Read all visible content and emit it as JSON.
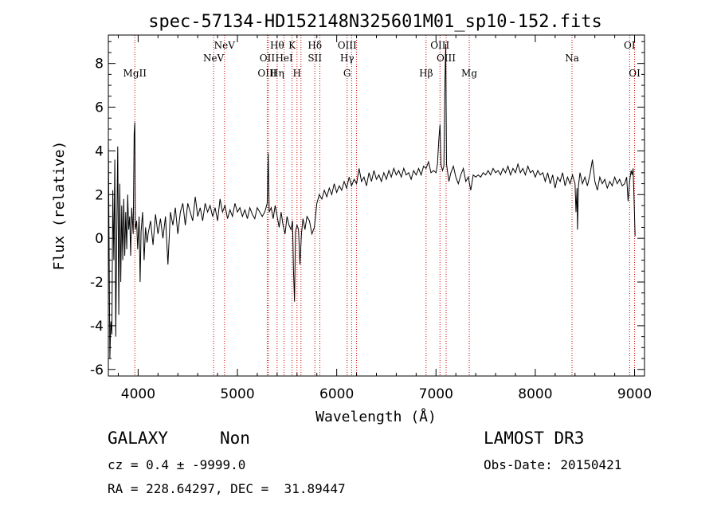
{
  "chart_data": {
    "type": "line",
    "title": "spec-57134-HD152148N325601M01_sp10-152.fits",
    "xlabel": "Wavelength (Å)",
    "ylabel": "Flux (relative)",
    "xlim": [
      3700,
      9100
    ],
    "ylim": [
      -6.3,
      9.3
    ],
    "x_ticks": [
      4000,
      5000,
      6000,
      7000,
      8000,
      9000
    ],
    "x_tick_labels": [
      "4000",
      "5000",
      "6000",
      "7000",
      "8000",
      "9000"
    ],
    "y_ticks": [
      -6,
      -4,
      -2,
      0,
      2,
      4,
      6,
      8
    ],
    "y_tick_labels": [
      "-6",
      "-4",
      "-2",
      "0",
      "2",
      "4",
      "6",
      "8"
    ],
    "grid": false,
    "line_color": "#000000",
    "marker_color": "#cc0000",
    "series": [
      {
        "name": "spectrum",
        "points": [
          [
            3700,
            4.6
          ],
          [
            3715,
            -5.5
          ],
          [
            3725,
            -3.8
          ],
          [
            3735,
            -4.4
          ],
          [
            3745,
            2.2
          ],
          [
            3755,
            -1.0
          ],
          [
            3765,
            3.6
          ],
          [
            3775,
            -4.5
          ],
          [
            3785,
            0.4
          ],
          [
            3795,
            4.2
          ],
          [
            3805,
            -3.5
          ],
          [
            3815,
            2.5
          ],
          [
            3825,
            -2.0
          ],
          [
            3835,
            1.5
          ],
          [
            3845,
            -1.0
          ],
          [
            3855,
            1.8
          ],
          [
            3865,
            -0.8
          ],
          [
            3875,
            1.2
          ],
          [
            3885,
            -0.5
          ],
          [
            3895,
            2.0
          ],
          [
            3905,
            0.4
          ],
          [
            3915,
            1.0
          ],
          [
            3925,
            -0.8
          ],
          [
            3935,
            1.4
          ],
          [
            3950,
            0.2
          ],
          [
            3960,
            4.8
          ],
          [
            3966,
            5.3
          ],
          [
            3972,
            0.4
          ],
          [
            3985,
            0.8
          ],
          [
            3995,
            -0.5
          ],
          [
            4010,
            1.0
          ],
          [
            4020,
            -2.0
          ],
          [
            4030,
            0.3
          ],
          [
            4045,
            1.2
          ],
          [
            4060,
            -1.0
          ],
          [
            4075,
            0.5
          ],
          [
            4090,
            -0.2
          ],
          [
            4100,
            0.2
          ],
          [
            4125,
            0.8
          ],
          [
            4150,
            -0.3
          ],
          [
            4175,
            1.1
          ],
          [
            4200,
            0.2
          ],
          [
            4225,
            0.9
          ],
          [
            4250,
            0.0
          ],
          [
            4275,
            1.0
          ],
          [
            4300,
            -1.2
          ],
          [
            4325,
            1.2
          ],
          [
            4350,
            0.6
          ],
          [
            4375,
            1.4
          ],
          [
            4400,
            0.2
          ],
          [
            4425,
            1.2
          ],
          [
            4450,
            1.6
          ],
          [
            4475,
            0.6
          ],
          [
            4500,
            1.6
          ],
          [
            4525,
            1.2
          ],
          [
            4550,
            0.8
          ],
          [
            4575,
            1.9
          ],
          [
            4600,
            1.0
          ],
          [
            4625,
            1.4
          ],
          [
            4650,
            0.8
          ],
          [
            4675,
            1.6
          ],
          [
            4700,
            1.2
          ],
          [
            4725,
            1.5
          ],
          [
            4750,
            1.0
          ],
          [
            4775,
            1.4
          ],
          [
            4800,
            0.8
          ],
          [
            4825,
            1.8
          ],
          [
            4850,
            1.2
          ],
          [
            4875,
            1.5
          ],
          [
            4900,
            0.9
          ],
          [
            4925,
            1.3
          ],
          [
            4950,
            1.0
          ],
          [
            4975,
            1.6
          ],
          [
            5000,
            1.2
          ],
          [
            5025,
            1.4
          ],
          [
            5050,
            1.0
          ],
          [
            5075,
            1.3
          ],
          [
            5100,
            0.9
          ],
          [
            5125,
            1.4
          ],
          [
            5150,
            1.1
          ],
          [
            5175,
            0.9
          ],
          [
            5200,
            1.4
          ],
          [
            5225,
            1.2
          ],
          [
            5250,
            1.0
          ],
          [
            5275,
            1.2
          ],
          [
            5300,
            1.6
          ],
          [
            5310,
            3.9
          ],
          [
            5320,
            1.2
          ],
          [
            5340,
            1.4
          ],
          [
            5360,
            0.9
          ],
          [
            5380,
            1.5
          ],
          [
            5400,
            1.0
          ],
          [
            5420,
            0.5
          ],
          [
            5440,
            1.2
          ],
          [
            5460,
            0.6
          ],
          [
            5480,
            0.2
          ],
          [
            5500,
            1.0
          ],
          [
            5520,
            0.6
          ],
          [
            5540,
            0.4
          ],
          [
            5555,
            0.8
          ],
          [
            5565,
            -1.5
          ],
          [
            5575,
            -2.9
          ],
          [
            5585,
            0.3
          ],
          [
            5600,
            0.6
          ],
          [
            5615,
            0.4
          ],
          [
            5630,
            -1.2
          ],
          [
            5645,
            0.2
          ],
          [
            5660,
            0.9
          ],
          [
            5680,
            0.4
          ],
          [
            5700,
            1.0
          ],
          [
            5725,
            0.8
          ],
          [
            5750,
            0.2
          ],
          [
            5775,
            0.5
          ],
          [
            5800,
            1.6
          ],
          [
            5825,
            2.0
          ],
          [
            5850,
            1.8
          ],
          [
            5875,
            2.2
          ],
          [
            5900,
            1.9
          ],
          [
            5925,
            2.3
          ],
          [
            5950,
            2.0
          ],
          [
            5975,
            2.5
          ],
          [
            6000,
            2.1
          ],
          [
            6025,
            2.4
          ],
          [
            6050,
            2.2
          ],
          [
            6075,
            2.6
          ],
          [
            6100,
            2.3
          ],
          [
            6125,
            2.8
          ],
          [
            6150,
            2.4
          ],
          [
            6175,
            2.7
          ],
          [
            6200,
            2.5
          ],
          [
            6225,
            3.2
          ],
          [
            6250,
            2.6
          ],
          [
            6275,
            2.8
          ],
          [
            6300,
            2.4
          ],
          [
            6325,
            3.0
          ],
          [
            6350,
            2.6
          ],
          [
            6375,
            3.1
          ],
          [
            6400,
            2.7
          ],
          [
            6425,
            2.9
          ],
          [
            6450,
            2.6
          ],
          [
            6475,
            3.0
          ],
          [
            6500,
            2.7
          ],
          [
            6525,
            3.1
          ],
          [
            6550,
            2.8
          ],
          [
            6575,
            3.2
          ],
          [
            6600,
            2.9
          ],
          [
            6625,
            3.1
          ],
          [
            6650,
            2.8
          ],
          [
            6675,
            3.2
          ],
          [
            6700,
            2.9
          ],
          [
            6725,
            3.0
          ],
          [
            6750,
            2.7
          ],
          [
            6775,
            3.1
          ],
          [
            6800,
            2.9
          ],
          [
            6825,
            3.2
          ],
          [
            6850,
            2.9
          ],
          [
            6875,
            3.3
          ],
          [
            6900,
            3.2
          ],
          [
            6925,
            3.5
          ],
          [
            6950,
            3.0
          ],
          [
            6975,
            3.1
          ],
          [
            7000,
            3.0
          ],
          [
            7015,
            3.4
          ],
          [
            7030,
            4.6
          ],
          [
            7040,
            5.2
          ],
          [
            7050,
            3.4
          ],
          [
            7065,
            3.1
          ],
          [
            7080,
            3.3
          ],
          [
            7090,
            7.2
          ],
          [
            7098,
            8.9
          ],
          [
            7106,
            3.4
          ],
          [
            7115,
            3.1
          ],
          [
            7130,
            2.6
          ],
          [
            7150,
            3.0
          ],
          [
            7175,
            3.3
          ],
          [
            7200,
            2.8
          ],
          [
            7225,
            2.5
          ],
          [
            7250,
            2.9
          ],
          [
            7275,
            3.2
          ],
          [
            7300,
            2.6
          ],
          [
            7325,
            2.8
          ],
          [
            7350,
            2.2
          ],
          [
            7375,
            2.9
          ],
          [
            7400,
            2.8
          ],
          [
            7425,
            2.9
          ],
          [
            7450,
            2.8
          ],
          [
            7475,
            3.0
          ],
          [
            7500,
            2.9
          ],
          [
            7525,
            3.1
          ],
          [
            7550,
            2.9
          ],
          [
            7575,
            3.2
          ],
          [
            7600,
            3.0
          ],
          [
            7625,
            3.1
          ],
          [
            7650,
            2.9
          ],
          [
            7675,
            3.2
          ],
          [
            7700,
            3.0
          ],
          [
            7725,
            3.3
          ],
          [
            7750,
            2.9
          ],
          [
            7775,
            3.2
          ],
          [
            7800,
            3.0
          ],
          [
            7825,
            3.4
          ],
          [
            7850,
            3.0
          ],
          [
            7875,
            3.2
          ],
          [
            7900,
            2.9
          ],
          [
            7925,
            3.3
          ],
          [
            7950,
            3.0
          ],
          [
            7975,
            3.1
          ],
          [
            8000,
            2.8
          ],
          [
            8025,
            3.1
          ],
          [
            8050,
            2.9
          ],
          [
            8075,
            3.0
          ],
          [
            8100,
            2.6
          ],
          [
            8125,
            3.0
          ],
          [
            8150,
            2.5
          ],
          [
            8175,
            2.9
          ],
          [
            8200,
            2.3
          ],
          [
            8225,
            2.8
          ],
          [
            8250,
            2.6
          ],
          [
            8275,
            3.0
          ],
          [
            8300,
            2.4
          ],
          [
            8325,
            2.8
          ],
          [
            8350,
            2.5
          ],
          [
            8375,
            2.9
          ],
          [
            8400,
            2.5
          ],
          [
            8410,
            1.2
          ],
          [
            8420,
            2.3
          ],
          [
            8425,
            0.4
          ],
          [
            8435,
            2.4
          ],
          [
            8450,
            3.0
          ],
          [
            8475,
            2.5
          ],
          [
            8500,
            2.8
          ],
          [
            8525,
            2.4
          ],
          [
            8550,
            2.9
          ],
          [
            8575,
            3.6
          ],
          [
            8600,
            2.6
          ],
          [
            8625,
            2.2
          ],
          [
            8650,
            2.8
          ],
          [
            8675,
            2.5
          ],
          [
            8700,
            2.7
          ],
          [
            8725,
            2.3
          ],
          [
            8750,
            2.6
          ],
          [
            8775,
            2.4
          ],
          [
            8800,
            2.8
          ],
          [
            8825,
            2.5
          ],
          [
            8850,
            2.7
          ],
          [
            8875,
            2.4
          ],
          [
            8900,
            2.5
          ],
          [
            8920,
            2.8
          ],
          [
            8935,
            1.7
          ],
          [
            8950,
            2.6
          ],
          [
            8965,
            3.1
          ],
          [
            8975,
            2.9
          ],
          [
            8985,
            3.2
          ],
          [
            8995,
            1.8
          ],
          [
            9005,
            0.1
          ]
        ]
      }
    ],
    "line_markers": [
      {
        "x": 3967,
        "labels": [
          "MgII"
        ],
        "rows": [
          3
        ]
      },
      {
        "x": 4760,
        "labels": [
          "NeV"
        ],
        "rows": [
          2
        ]
      },
      {
        "x": 4870,
        "labels": [
          "NeV"
        ],
        "rows": [
          1
        ]
      },
      {
        "x": 5300,
        "labels": [
          "OII",
          "OIII"
        ],
        "rows": [
          2,
          3
        ]
      },
      {
        "x": 5312,
        "labels": [],
        "rows": []
      },
      {
        "x": 5400,
        "labels": [
          "Hθ",
          "Hη"
        ],
        "rows": [
          1,
          3
        ]
      },
      {
        "x": 5470,
        "labels": [
          "HeI"
        ],
        "rows": [
          2
        ]
      },
      {
        "x": 5550,
        "labels": [
          "K"
        ],
        "rows": [
          1
        ]
      },
      {
        "x": 5600,
        "labels": [
          "H"
        ],
        "rows": [
          3
        ]
      },
      {
        "x": 5640,
        "labels": [],
        "rows": []
      },
      {
        "x": 5780,
        "labels": [
          "Hδ",
          "SII"
        ],
        "rows": [
          1,
          2
        ]
      },
      {
        "x": 5830,
        "labels": [],
        "rows": []
      },
      {
        "x": 6105,
        "labels": [
          "OIII",
          "Hγ",
          "G"
        ],
        "rows": [
          1,
          2,
          3
        ]
      },
      {
        "x": 6150,
        "labels": [],
        "rows": []
      },
      {
        "x": 6200,
        "labels": [],
        "rows": []
      },
      {
        "x": 6900,
        "labels": [
          "Hβ"
        ],
        "rows": [
          3
        ]
      },
      {
        "x": 7040,
        "labels": [
          "OIII"
        ],
        "rows": [
          1
        ]
      },
      {
        "x": 7102,
        "labels": [
          "OIII"
        ],
        "rows": [
          2
        ]
      },
      {
        "x": 7335,
        "labels": [
          "Mg"
        ],
        "rows": [
          3
        ]
      },
      {
        "x": 8370,
        "labels": [
          "Na"
        ],
        "rows": [
          2
        ]
      },
      {
        "x": 8950,
        "labels": [
          "OI"
        ],
        "rows": [
          1
        ]
      },
      {
        "x": 9000,
        "labels": [
          "OI"
        ],
        "rows": [
          3
        ]
      }
    ]
  },
  "info": {
    "object_class": "GALAXY",
    "subclass": "Non",
    "survey": "LAMOST DR3",
    "cz": "cz = 0.4 ± -9999.0",
    "obs_date": "Obs-Date: 20150421",
    "coords": "RA = 228.64297, DEC =  31.89447"
  }
}
